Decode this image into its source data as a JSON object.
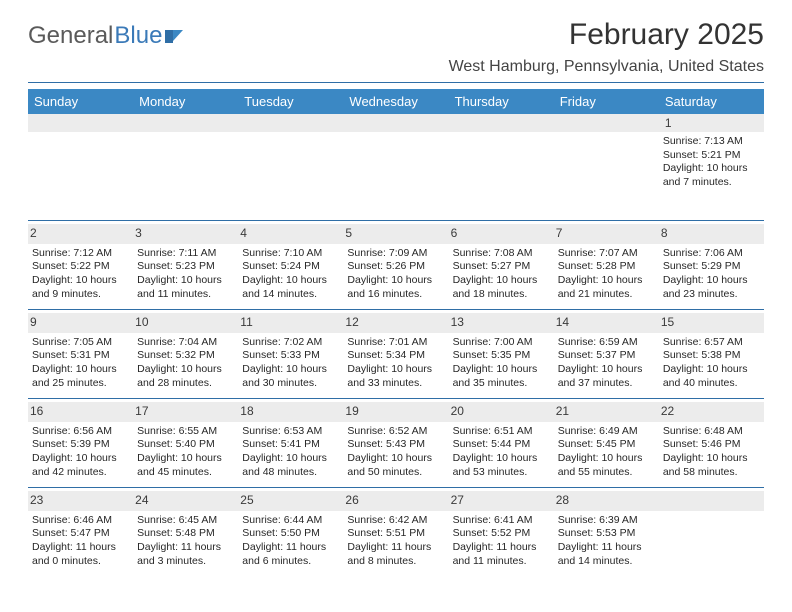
{
  "logo": {
    "part1": "General",
    "part2": "Blue"
  },
  "title": "February 2025",
  "location": "West Hamburg, Pennsylvania, United States",
  "weekdays": [
    "Sunday",
    "Monday",
    "Tuesday",
    "Wednesday",
    "Thursday",
    "Friday",
    "Saturday"
  ],
  "colors": {
    "header_bar": "#3b88c4",
    "rule": "#2f6ea6",
    "daybar_bg": "#ececec",
    "text": "#272727",
    "logo_gray": "#5a5a5a",
    "logo_blue": "#3b7ab8"
  },
  "weeks": [
    [
      {
        "n": "",
        "lines": []
      },
      {
        "n": "",
        "lines": []
      },
      {
        "n": "",
        "lines": []
      },
      {
        "n": "",
        "lines": []
      },
      {
        "n": "",
        "lines": []
      },
      {
        "n": "",
        "lines": []
      },
      {
        "n": "1",
        "lines": [
          "Sunrise: 7:13 AM",
          "Sunset: 5:21 PM",
          "Daylight: 10 hours and 7 minutes."
        ]
      }
    ],
    [
      {
        "n": "2",
        "lines": [
          "Sunrise: 7:12 AM",
          "Sunset: 5:22 PM",
          "Daylight: 10 hours and 9 minutes."
        ]
      },
      {
        "n": "3",
        "lines": [
          "Sunrise: 7:11 AM",
          "Sunset: 5:23 PM",
          "Daylight: 10 hours and 11 minutes."
        ]
      },
      {
        "n": "4",
        "lines": [
          "Sunrise: 7:10 AM",
          "Sunset: 5:24 PM",
          "Daylight: 10 hours and 14 minutes."
        ]
      },
      {
        "n": "5",
        "lines": [
          "Sunrise: 7:09 AM",
          "Sunset: 5:26 PM",
          "Daylight: 10 hours and 16 minutes."
        ]
      },
      {
        "n": "6",
        "lines": [
          "Sunrise: 7:08 AM",
          "Sunset: 5:27 PM",
          "Daylight: 10 hours and 18 minutes."
        ]
      },
      {
        "n": "7",
        "lines": [
          "Sunrise: 7:07 AM",
          "Sunset: 5:28 PM",
          "Daylight: 10 hours and 21 minutes."
        ]
      },
      {
        "n": "8",
        "lines": [
          "Sunrise: 7:06 AM",
          "Sunset: 5:29 PM",
          "Daylight: 10 hours and 23 minutes."
        ]
      }
    ],
    [
      {
        "n": "9",
        "lines": [
          "Sunrise: 7:05 AM",
          "Sunset: 5:31 PM",
          "Daylight: 10 hours and 25 minutes."
        ]
      },
      {
        "n": "10",
        "lines": [
          "Sunrise: 7:04 AM",
          "Sunset: 5:32 PM",
          "Daylight: 10 hours and 28 minutes."
        ]
      },
      {
        "n": "11",
        "lines": [
          "Sunrise: 7:02 AM",
          "Sunset: 5:33 PM",
          "Daylight: 10 hours and 30 minutes."
        ]
      },
      {
        "n": "12",
        "lines": [
          "Sunrise: 7:01 AM",
          "Sunset: 5:34 PM",
          "Daylight: 10 hours and 33 minutes."
        ]
      },
      {
        "n": "13",
        "lines": [
          "Sunrise: 7:00 AM",
          "Sunset: 5:35 PM",
          "Daylight: 10 hours and 35 minutes."
        ]
      },
      {
        "n": "14",
        "lines": [
          "Sunrise: 6:59 AM",
          "Sunset: 5:37 PM",
          "Daylight: 10 hours and 37 minutes."
        ]
      },
      {
        "n": "15",
        "lines": [
          "Sunrise: 6:57 AM",
          "Sunset: 5:38 PM",
          "Daylight: 10 hours and 40 minutes."
        ]
      }
    ],
    [
      {
        "n": "16",
        "lines": [
          "Sunrise: 6:56 AM",
          "Sunset: 5:39 PM",
          "Daylight: 10 hours and 42 minutes."
        ]
      },
      {
        "n": "17",
        "lines": [
          "Sunrise: 6:55 AM",
          "Sunset: 5:40 PM",
          "Daylight: 10 hours and 45 minutes."
        ]
      },
      {
        "n": "18",
        "lines": [
          "Sunrise: 6:53 AM",
          "Sunset: 5:41 PM",
          "Daylight: 10 hours and 48 minutes."
        ]
      },
      {
        "n": "19",
        "lines": [
          "Sunrise: 6:52 AM",
          "Sunset: 5:43 PM",
          "Daylight: 10 hours and 50 minutes."
        ]
      },
      {
        "n": "20",
        "lines": [
          "Sunrise: 6:51 AM",
          "Sunset: 5:44 PM",
          "Daylight: 10 hours and 53 minutes."
        ]
      },
      {
        "n": "21",
        "lines": [
          "Sunrise: 6:49 AM",
          "Sunset: 5:45 PM",
          "Daylight: 10 hours and 55 minutes."
        ]
      },
      {
        "n": "22",
        "lines": [
          "Sunrise: 6:48 AM",
          "Sunset: 5:46 PM",
          "Daylight: 10 hours and 58 minutes."
        ]
      }
    ],
    [
      {
        "n": "23",
        "lines": [
          "Sunrise: 6:46 AM",
          "Sunset: 5:47 PM",
          "Daylight: 11 hours and 0 minutes."
        ]
      },
      {
        "n": "24",
        "lines": [
          "Sunrise: 6:45 AM",
          "Sunset: 5:48 PM",
          "Daylight: 11 hours and 3 minutes."
        ]
      },
      {
        "n": "25",
        "lines": [
          "Sunrise: 6:44 AM",
          "Sunset: 5:50 PM",
          "Daylight: 11 hours and 6 minutes."
        ]
      },
      {
        "n": "26",
        "lines": [
          "Sunrise: 6:42 AM",
          "Sunset: 5:51 PM",
          "Daylight: 11 hours and 8 minutes."
        ]
      },
      {
        "n": "27",
        "lines": [
          "Sunrise: 6:41 AM",
          "Sunset: 5:52 PM",
          "Daylight: 11 hours and 11 minutes."
        ]
      },
      {
        "n": "28",
        "lines": [
          "Sunrise: 6:39 AM",
          "Sunset: 5:53 PM",
          "Daylight: 11 hours and 14 minutes."
        ]
      },
      {
        "n": "",
        "lines": []
      }
    ]
  ]
}
